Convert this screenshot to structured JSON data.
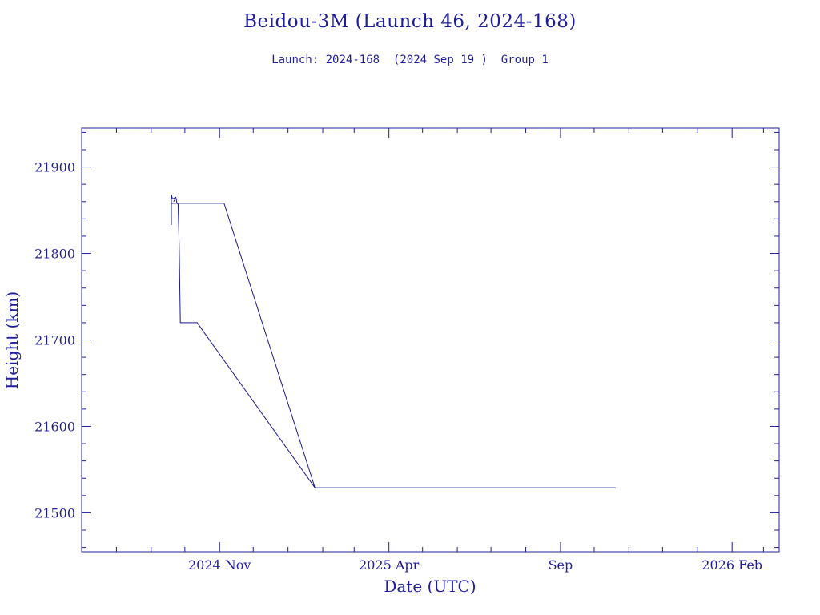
{
  "title": "Beidou-3M (Launch 46, 2024-168)",
  "subtitle": "Launch: 2024-168  (2024 Sep 19 )  Group 1",
  "colors": {
    "axis": "#1f1f9e",
    "line": "#1a1a8c",
    "background": "#ffffff"
  },
  "chart_data": {
    "type": "line",
    "xlabel": "Date (UTC)",
    "ylabel": "Height (km)",
    "xlim": [
      "2024-07-01",
      "2026-03-15"
    ],
    "ylim": [
      21455,
      21945
    ],
    "x_ticks": [
      {
        "date": "2024-11-01",
        "label": "2024 Nov"
      },
      {
        "date": "2025-04-01",
        "label": "2025 Apr"
      },
      {
        "date": "2025-09-01",
        "label": "Sep"
      },
      {
        "date": "2026-02-01",
        "label": "2026 Feb"
      }
    ],
    "x_minor_ticks": [
      "2024-08-01",
      "2024-09-01",
      "2024-10-01",
      "2024-12-01",
      "2025-01-01",
      "2025-02-01",
      "2025-03-01",
      "2025-05-01",
      "2025-06-01",
      "2025-07-01",
      "2025-08-01",
      "2025-10-01",
      "2025-11-01",
      "2025-12-01",
      "2026-01-01",
      "2026-03-01"
    ],
    "y_ticks": [
      21500,
      21600,
      21700,
      21800,
      21900
    ],
    "y_minor_ticks": [
      21460,
      21480,
      21520,
      21540,
      21560,
      21580,
      21620,
      21640,
      21660,
      21680,
      21720,
      21740,
      21760,
      21780,
      21820,
      21840,
      21860,
      21880,
      21920,
      21940
    ],
    "grid": false,
    "series": [
      {
        "points": [
          {
            "x": "2024-09-19",
            "y": 21833
          },
          {
            "x": "2024-09-19",
            "y": 21868
          },
          {
            "x": "2024-09-20",
            "y": 21863
          },
          {
            "x": "2024-09-23",
            "y": 21865
          },
          {
            "x": "2024-09-24",
            "y": 21858
          },
          {
            "x": "2024-09-25",
            "y": 21857
          },
          {
            "x": "2024-09-26",
            "y": 21808
          },
          {
            "x": "2024-09-27",
            "y": 21720
          },
          {
            "x": "2024-10-12",
            "y": 21720
          },
          {
            "x": "2025-01-25",
            "y": 21529
          },
          {
            "x": "2025-10-20",
            "y": 21529
          }
        ]
      },
      {
        "points": [
          {
            "x": "2024-09-19",
            "y": 21858
          },
          {
            "x": "2024-11-05",
            "y": 21858
          },
          {
            "x": "2025-01-25",
            "y": 21529
          }
        ]
      },
      {
        "points": [
          {
            "x": "2024-09-21",
            "y": 21860
          },
          {
            "x": "2024-09-22",
            "y": 21862
          }
        ]
      }
    ]
  }
}
